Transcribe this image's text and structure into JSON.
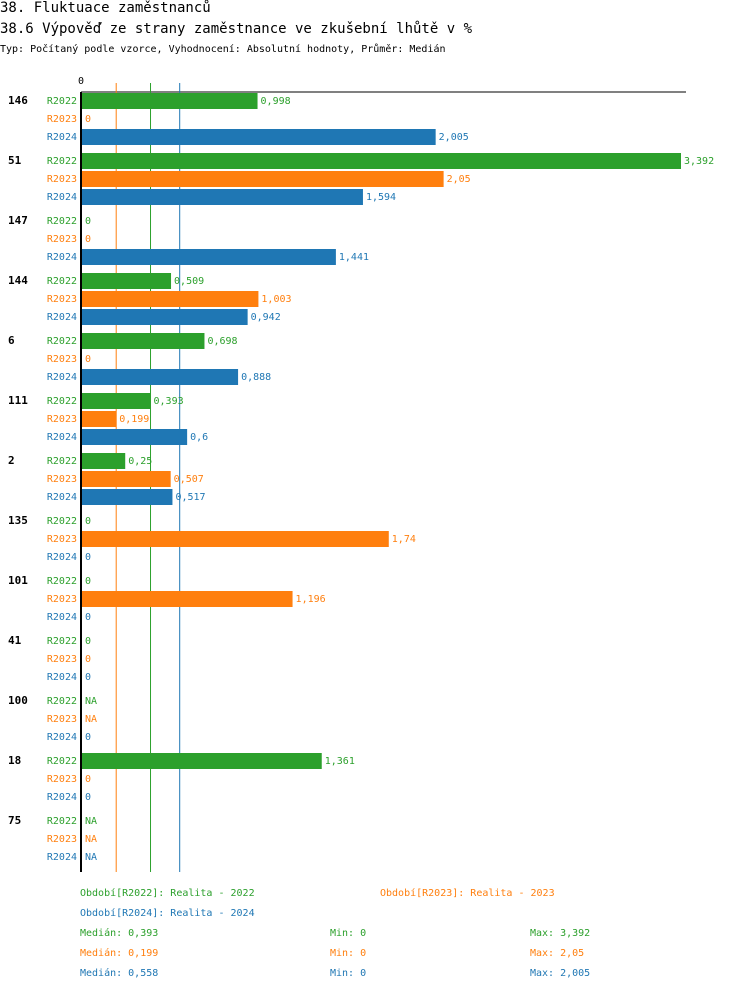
{
  "chart_data": {
    "type": "bar",
    "orientation": "horizontal",
    "title": "38. Fluktuace zaměstnanců",
    "subtitle": "38.6 Výpověď ze strany zaměstnance ve zkušební lhůtě v %",
    "info": "Typ: Počítaný podle vzorce, Vyhodnocení: Absolutní hodnoty, Průměr: Medián",
    "axis_zero_label": "0",
    "xlim": [
      0,
      3.392
    ],
    "series": [
      {
        "key": "R2022",
        "color": "#2ca02c"
      },
      {
        "key": "R2023",
        "color": "#ff7f0e"
      },
      {
        "key": "R2024",
        "color": "#1f77b4"
      }
    ],
    "groups": [
      {
        "label": "146",
        "values": [
          0.998,
          0,
          2.005
        ],
        "labels": [
          "0,998",
          "0",
          "2,005"
        ]
      },
      {
        "label": "51",
        "values": [
          3.392,
          2.05,
          1.594
        ],
        "labels": [
          "3,392",
          "2,05",
          "1,594"
        ]
      },
      {
        "label": "147",
        "values": [
          0,
          0,
          1.441
        ],
        "labels": [
          "0",
          "0",
          "1,441"
        ]
      },
      {
        "label": "144",
        "values": [
          0.509,
          1.003,
          0.942
        ],
        "labels": [
          "0,509",
          "1,003",
          "0,942"
        ]
      },
      {
        "label": "6",
        "values": [
          0.698,
          0,
          0.888
        ],
        "labels": [
          "0,698",
          "0",
          "0,888"
        ]
      },
      {
        "label": "111",
        "values": [
          0.393,
          0.199,
          0.6
        ],
        "labels": [
          "0,393",
          "0,199",
          "0,6"
        ]
      },
      {
        "label": "2",
        "values": [
          0.25,
          0.507,
          0.517
        ],
        "labels": [
          "0,25",
          "0,507",
          "0,517"
        ]
      },
      {
        "label": "135",
        "values": [
          0,
          1.74,
          0
        ],
        "labels": [
          "0",
          "1,74",
          "0"
        ]
      },
      {
        "label": "101",
        "values": [
          0,
          1.196,
          0
        ],
        "labels": [
          "0",
          "1,196",
          "0"
        ]
      },
      {
        "label": "41",
        "values": [
          0,
          0,
          0
        ],
        "labels": [
          "0",
          "0",
          "0"
        ]
      },
      {
        "label": "100",
        "values": [
          null,
          null,
          0
        ],
        "labels": [
          "NA",
          "NA",
          "0"
        ]
      },
      {
        "label": "18",
        "values": [
          1.361,
          0,
          0
        ],
        "labels": [
          "1,361",
          "0",
          "0"
        ]
      },
      {
        "label": "75",
        "values": [
          null,
          null,
          null
        ],
        "labels": [
          "NA",
          "NA",
          "NA"
        ]
      }
    ],
    "median_lines": [
      0.393,
      0.199,
      0.558
    ]
  },
  "legend": {
    "period_r2022": "Období[R2022]: Realita - 2022",
    "period_r2023": "Období[R2023]: Realita - 2023",
    "period_r2024": "Období[R2024]: Realita - 2024",
    "stats": [
      {
        "median": "Medián: 0,393",
        "min": "Min: 0",
        "max": "Max: 3,392"
      },
      {
        "median": "Medián: 0,199",
        "min": "Min: 0",
        "max": "Max: 2,05"
      },
      {
        "median": "Medián: 0,558",
        "min": "Min: 0",
        "max": "Max: 2,005"
      }
    ]
  }
}
